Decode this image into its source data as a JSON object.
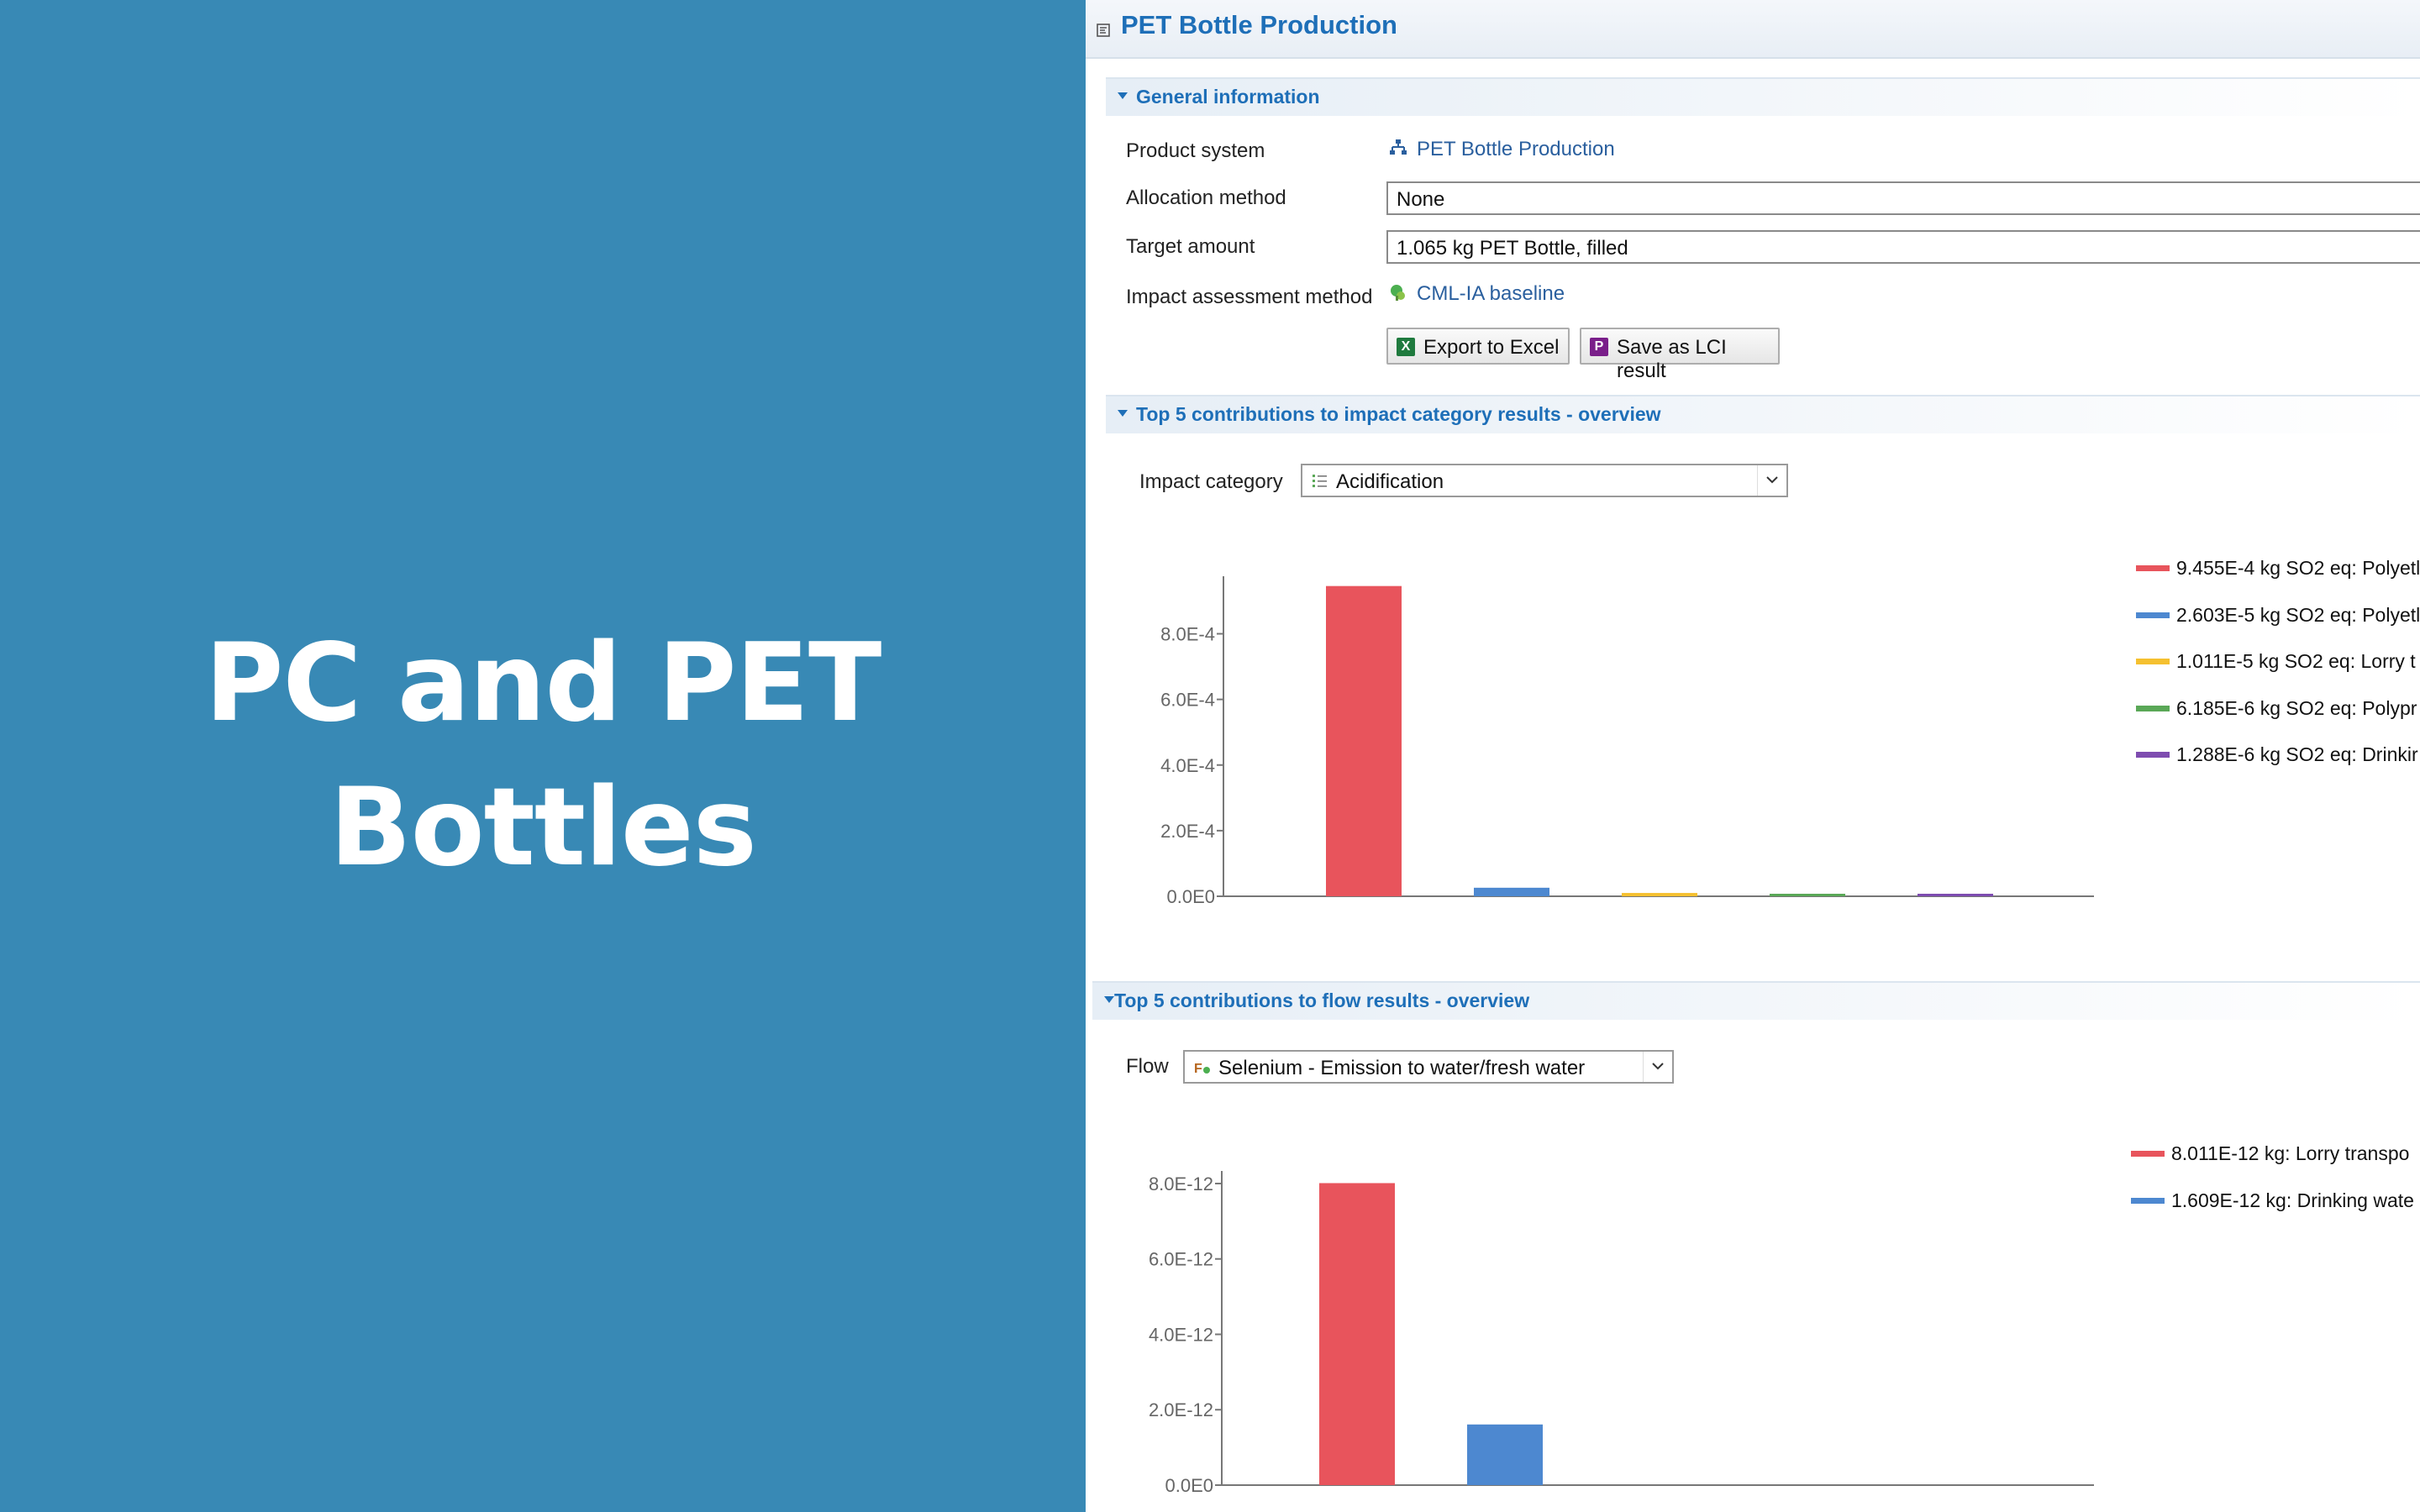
{
  "slide": {
    "title_line1": "PC and PET",
    "title_line2": "Bottles"
  },
  "editor": {
    "title": "PET Bottle Production",
    "general_info": {
      "header": "General information",
      "product_system_label": "Product system",
      "product_system_value": "PET Bottle Production",
      "allocation_label": "Allocation method",
      "allocation_value": "None",
      "target_label": "Target amount",
      "target_value": "1.065 kg PET Bottle, filled",
      "impact_method_label": "Impact assessment method",
      "impact_method_value": "CML-IA baseline",
      "export_button": "Export to Excel",
      "save_button": "Save as LCI result"
    },
    "impact_section": {
      "header": "Top 5 contributions to impact category results - overview",
      "selector_label": "Impact category",
      "selector_value": "Acidification"
    },
    "flow_section": {
      "header": "Top 5 contributions to flow results - overview",
      "selector_label": "Flow",
      "selector_value": "Selenium - Emission to water/fresh water"
    }
  },
  "colors": {
    "slide_bg": "#3889b5",
    "accent": "#1e6fb8",
    "series": [
      "#e8545c",
      "#4d88d0",
      "#f5c030",
      "#5aa857",
      "#7e4cb0"
    ]
  },
  "chart_data": [
    {
      "type": "bar",
      "categories": [
        "Polyet…",
        "Polyet…",
        "Lorry t…",
        "Polypr…",
        "Drinkin…"
      ],
      "values": [
        0.0009455,
        2.603e-05,
        1.011e-05,
        6.185e-06,
        1.288e-06
      ],
      "ylim": [
        0,
        0.00096
      ],
      "yticks": [
        "0.0E0",
        "2.0E-4",
        "4.0E-4",
        "6.0E-4",
        "8.0E-4"
      ],
      "ytick_values": [
        0,
        0.0002,
        0.0004,
        0.0006,
        0.0008
      ],
      "legend": [
        "9.455E-4 kg SO2 eq: Polyetl",
        "2.603E-5 kg SO2 eq: Polyetl",
        "1.011E-5 kg SO2 eq: Lorry t",
        "6.185E-6 kg SO2 eq: Polypr",
        "1.288E-6 kg SO2 eq: Drinkir"
      ],
      "legend_position": "right"
    },
    {
      "type": "bar",
      "categories": [
        "Lorry transpo…",
        "Drinking wate…"
      ],
      "values": [
        8.011e-12,
        1.609e-12
      ],
      "ylim": [
        0,
        8.2e-12
      ],
      "yticks": [
        "0.0E0",
        "2.0E-12",
        "4.0E-12",
        "6.0E-12",
        "8.0E-12"
      ],
      "ytick_values": [
        0,
        2e-12,
        4e-12,
        6e-12,
        8e-12
      ],
      "legend": [
        "8.011E-12 kg: Lorry transpo",
        "1.609E-12 kg: Drinking wate"
      ],
      "legend_position": "right"
    }
  ]
}
